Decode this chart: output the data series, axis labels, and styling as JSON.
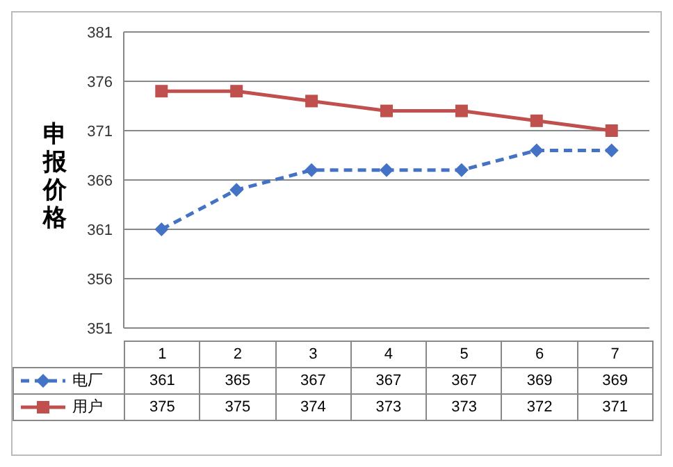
{
  "chart_data": {
    "type": "line",
    "ylabel": "申报价格",
    "categories": [
      "1",
      "2",
      "3",
      "4",
      "5",
      "6",
      "7"
    ],
    "series": [
      {
        "name": "电厂",
        "color": "#4472c4",
        "values": [
          361,
          365,
          367,
          367,
          367,
          369,
          369
        ],
        "line_style": "dashed",
        "marker": "diamond"
      },
      {
        "name": "用户",
        "color": "#c0504d",
        "values": [
          375,
          375,
          374,
          373,
          373,
          372,
          371
        ],
        "line_style": "solid",
        "marker": "square"
      }
    ],
    "ylim": [
      351,
      381
    ],
    "yticks": [
      351,
      356,
      361,
      366,
      371,
      376,
      381
    ],
    "grid": "y",
    "legend": "bottom",
    "data_labels": true
  }
}
